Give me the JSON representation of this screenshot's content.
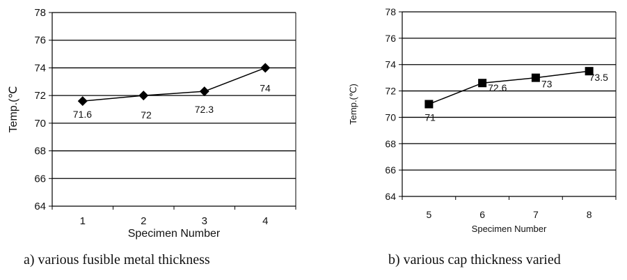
{
  "chart_data": [
    {
      "type": "line",
      "title": "",
      "xlabel": "Specimen Number",
      "ylabel": "Temp.(℃",
      "categories": [
        "1",
        "2",
        "3",
        "4"
      ],
      "x": [
        1,
        2,
        3,
        4
      ],
      "series": [
        {
          "marker": "diamond",
          "values": [
            71.6,
            72,
            72.3,
            74
          ]
        }
      ],
      "data_labels": [
        "71.6",
        "72",
        "72.3",
        "74"
      ],
      "ylim": [
        64,
        78
      ],
      "yticks": [
        "64",
        "66",
        "68",
        "70",
        "72",
        "74",
        "76",
        "78"
      ],
      "grid": true,
      "caption": "a) various fusible metal thickness"
    },
    {
      "type": "line",
      "title": "",
      "xlabel": "Specimen Number",
      "ylabel": "Temp.(℃)",
      "categories": [
        "5",
        "6",
        "7",
        "8"
      ],
      "x": [
        5,
        6,
        7,
        8
      ],
      "series": [
        {
          "marker": "square",
          "values": [
            71,
            72.6,
            73,
            73.5
          ]
        }
      ],
      "data_labels": [
        "71",
        "72.6",
        "73",
        "73.5"
      ],
      "ylim": [
        64,
        78
      ],
      "yticks": [
        "64",
        "66",
        "68",
        "70",
        "72",
        "74",
        "76",
        "78"
      ],
      "grid": true,
      "caption": "b) various cap thickness varied"
    }
  ]
}
